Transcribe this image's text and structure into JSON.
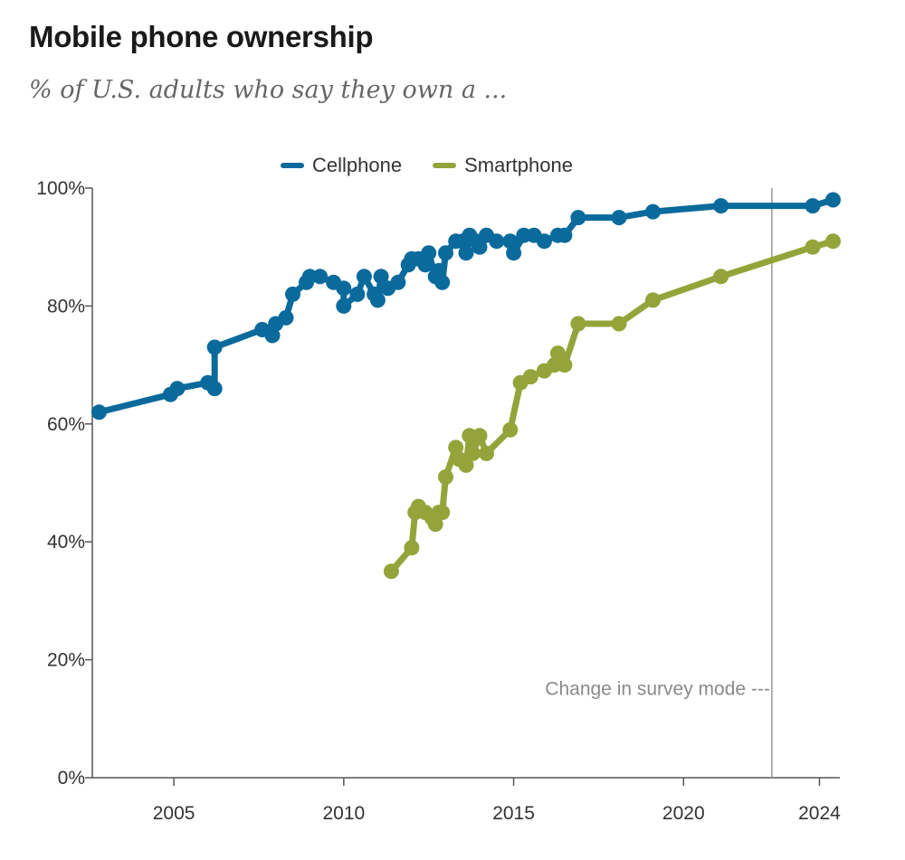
{
  "title": "Mobile phone ownership",
  "subtitle": "% of U.S. adults who say they own a ...",
  "chart_data": {
    "type": "line",
    "title": "Mobile phone ownership",
    "subtitle": "% of U.S. adults who say they own a ...",
    "xlabel": "",
    "ylabel": "",
    "xlim": [
      2002.6,
      2024.6
    ],
    "ylim": [
      0,
      100
    ],
    "x_ticks": [
      2005,
      2010,
      2015,
      2020,
      2024
    ],
    "x_tick_labels": [
      "2005",
      "2010",
      "2015",
      "2020",
      "2024"
    ],
    "y_ticks": [
      0,
      20,
      40,
      60,
      80,
      100
    ],
    "y_tick_labels": [
      "0%",
      "20%",
      "40%",
      "60%",
      "80%",
      "100%"
    ],
    "grid": false,
    "legend": "top-center",
    "series": [
      {
        "name": "Cellphone",
        "color": "#0a6a9c",
        "points": [
          [
            2002.8,
            62
          ],
          [
            2004.9,
            65
          ],
          [
            2005.1,
            66
          ],
          [
            2006.0,
            67
          ],
          [
            2006.2,
            66
          ],
          [
            2006.2,
            73
          ],
          [
            2007.6,
            76
          ],
          [
            2007.9,
            75
          ],
          [
            2008.0,
            77
          ],
          [
            2008.3,
            78
          ],
          [
            2008.5,
            82
          ],
          [
            2008.9,
            84
          ],
          [
            2009.0,
            85
          ],
          [
            2009.3,
            85
          ],
          [
            2009.7,
            84
          ],
          [
            2010.0,
            83
          ],
          [
            2010.0,
            80
          ],
          [
            2010.4,
            82
          ],
          [
            2010.6,
            85
          ],
          [
            2010.9,
            82
          ],
          [
            2011.0,
            81
          ],
          [
            2011.1,
            85
          ],
          [
            2011.3,
            83
          ],
          [
            2011.6,
            84
          ],
          [
            2011.9,
            87
          ],
          [
            2012.0,
            88
          ],
          [
            2012.2,
            88
          ],
          [
            2012.4,
            87
          ],
          [
            2012.5,
            89
          ],
          [
            2012.7,
            85
          ],
          [
            2012.8,
            86
          ],
          [
            2012.9,
            84
          ],
          [
            2013.0,
            89
          ],
          [
            2013.3,
            91
          ],
          [
            2013.5,
            91
          ],
          [
            2013.6,
            89
          ],
          [
            2013.7,
            92
          ],
          [
            2013.9,
            91
          ],
          [
            2014.0,
            90
          ],
          [
            2014.2,
            92
          ],
          [
            2014.5,
            91
          ],
          [
            2014.9,
            91
          ],
          [
            2015.0,
            89
          ],
          [
            2015.3,
            92
          ],
          [
            2015.6,
            92
          ],
          [
            2015.9,
            91
          ],
          [
            2016.3,
            92
          ],
          [
            2016.5,
            92
          ],
          [
            2016.9,
            95
          ],
          [
            2018.1,
            95
          ],
          [
            2019.1,
            96
          ],
          [
            2021.1,
            97
          ],
          [
            2023.8,
            97
          ],
          [
            2024.4,
            98
          ]
        ]
      },
      {
        "name": "Smartphone",
        "color": "#94a43a",
        "points": [
          [
            2011.4,
            35
          ],
          [
            2012.0,
            39
          ],
          [
            2012.1,
            45
          ],
          [
            2012.2,
            46
          ],
          [
            2012.4,
            45
          ],
          [
            2012.6,
            44
          ],
          [
            2012.7,
            43
          ],
          [
            2012.8,
            45
          ],
          [
            2012.9,
            45
          ],
          [
            2013.0,
            51
          ],
          [
            2013.3,
            56
          ],
          [
            2013.4,
            54
          ],
          [
            2013.6,
            53
          ],
          [
            2013.7,
            58
          ],
          [
            2013.8,
            55
          ],
          [
            2014.0,
            58
          ],
          [
            2014.2,
            55
          ],
          [
            2014.9,
            59
          ],
          [
            2015.2,
            67
          ],
          [
            2015.5,
            68
          ],
          [
            2015.9,
            69
          ],
          [
            2016.2,
            70
          ],
          [
            2016.3,
            72
          ],
          [
            2016.5,
            70
          ],
          [
            2016.9,
            77
          ],
          [
            2018.1,
            77
          ],
          [
            2019.1,
            81
          ],
          [
            2021.1,
            85
          ],
          [
            2023.8,
            90
          ],
          [
            2024.4,
            91
          ]
        ]
      }
    ],
    "annotations": [
      {
        "text": "Change in survey mode ---",
        "x": 2022.6
      }
    ]
  },
  "legend": {
    "items": [
      {
        "label": "Cellphone",
        "color": "#0a6a9c"
      },
      {
        "label": "Smartphone",
        "color": "#94a43a"
      }
    ]
  }
}
